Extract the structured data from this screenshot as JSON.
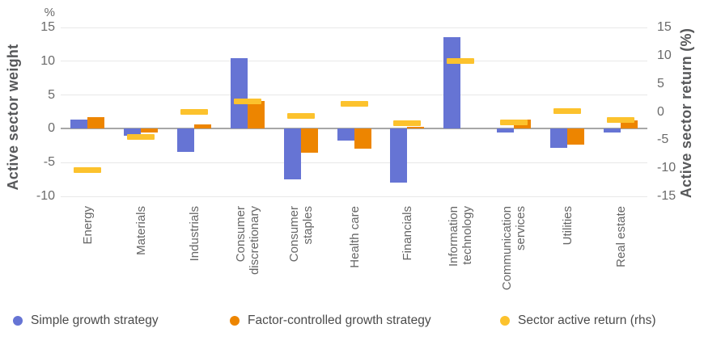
{
  "chart_data": {
    "type": "bar",
    "title": "",
    "y_unit_left": "%",
    "ylabel_left": "Active sector weight",
    "ylabel_right": "Active sector return (%)",
    "left_axis": {
      "min": -10,
      "max": 15,
      "ticks": [
        15,
        10,
        5,
        0,
        -5,
        -10
      ]
    },
    "right_axis": {
      "min": -15,
      "max": 15,
      "ticks": [
        15,
        10,
        5,
        0,
        -5,
        -10,
        -15
      ]
    },
    "grid": true,
    "legend_position": "bottom",
    "categories": [
      "Energy",
      "Materials",
      "Industrials",
      "Consumer discretionary",
      "Consumer staples",
      "Health care",
      "Financials",
      "Information technology",
      "Communication services",
      "Utilities",
      "Real estate"
    ],
    "series": [
      {
        "name": "Simple growth strategy",
        "axis": "left",
        "marker": "bar",
        "color": "#6674d4",
        "values": [
          1.4,
          -1.0,
          -3.4,
          10.4,
          -7.5,
          -1.7,
          -8.0,
          13.6,
          -0.5,
          -2.8,
          -0.5
        ]
      },
      {
        "name": "Factor-controlled growth strategy",
        "axis": "left",
        "marker": "bar",
        "color": "#ed8500",
        "values": [
          1.7,
          -0.5,
          0.7,
          4.1,
          -3.6,
          -2.9,
          0.3,
          0.0,
          1.4,
          -2.3,
          1.3
        ]
      },
      {
        "name": "Sector active return (rhs)",
        "axis": "right",
        "marker": "dash",
        "color": "#fcc22d",
        "values": [
          -10.4,
          -4.5,
          0.0,
          1.8,
          -0.7,
          1.5,
          -2.0,
          9.1,
          -1.9,
          0.1,
          -1.4
        ]
      }
    ]
  }
}
